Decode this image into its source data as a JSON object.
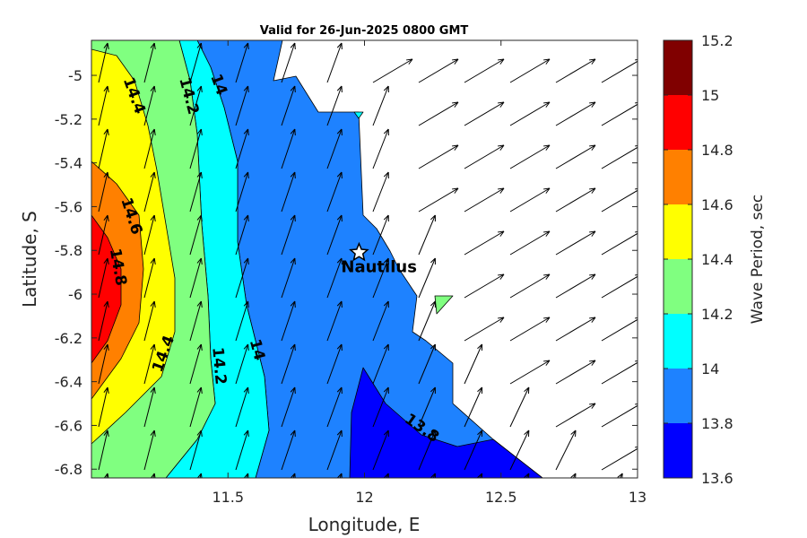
{
  "chart_data": {
    "type": "filled-contour-map",
    "title": "Valid for 26-Jun-2025 0800 GMT",
    "xlabel": "Longitude, E",
    "ylabel": "Latitude, S",
    "xlim": [
      11.0,
      13.0
    ],
    "ylim": [
      -6.84,
      -4.84
    ],
    "xticks": [
      11.5,
      12,
      12.5,
      13
    ],
    "xtick_labels": [
      "11.5",
      "12",
      "12.5",
      "13"
    ],
    "yticks": [
      -5,
      -5.2,
      -5.4,
      -5.6,
      -5.8,
      -6,
      -6.2,
      -6.4,
      -6.6,
      -6.8
    ],
    "ytick_labels": [
      "-5",
      "-5.2",
      "-5.4",
      "-5.6",
      "-5.8",
      "-6",
      "-6.2",
      "-6.4",
      "-6.6",
      "-6.8"
    ],
    "colorbar": {
      "label": "Wave Period, sec",
      "ticks": [
        "15.2",
        "15",
        "14.8",
        "14.6",
        "14.4",
        "14.2",
        "14",
        "13.8",
        "13.6"
      ],
      "levels": [
        13.6,
        13.8,
        14.0,
        14.2,
        14.4,
        14.6,
        14.8,
        15.0,
        15.2
      ],
      "colors": [
        "#0000ff",
        "#1e82ff",
        "#00ffff",
        "#80ff80",
        "#ffff00",
        "#ff8000",
        "#ff0000",
        "#800000"
      ]
    },
    "contour_labels": [
      {
        "text": "14.4",
        "lon": 11.14,
        "lat": -5.1
      },
      {
        "text": "14.2",
        "lon": 11.34,
        "lat": -5.1
      },
      {
        "text": "14",
        "lon": 11.45,
        "lat": -5.05
      },
      {
        "text": "14.6",
        "lon": 11.13,
        "lat": -5.65
      },
      {
        "text": "14.8",
        "lon": 11.08,
        "lat": -5.88
      },
      {
        "text": "14.4",
        "lon": 11.28,
        "lat": -6.28
      },
      {
        "text": "14.2",
        "lon": 11.45,
        "lat": -6.33
      },
      {
        "text": "14",
        "lon": 11.59,
        "lat": -6.26
      },
      {
        "text": "13.8",
        "lon": 12.2,
        "lat": -6.63
      }
    ],
    "site": {
      "name": "Nautilus",
      "lon": 11.98,
      "lat": -5.81
    },
    "vectors": {
      "description": "wave direction arrows pointing north-northeast",
      "style": "black"
    }
  }
}
